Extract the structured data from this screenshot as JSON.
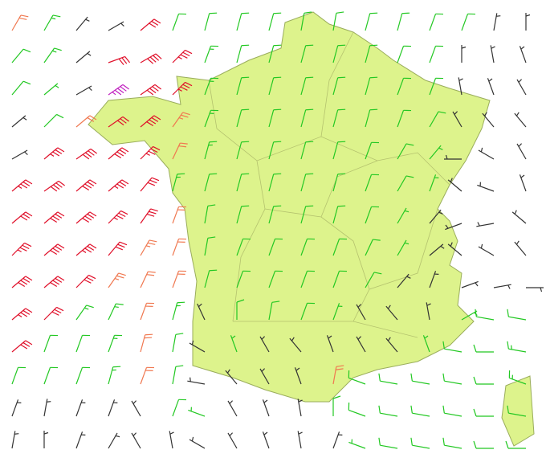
{
  "wind": {
    "speed_colors": [
      {
        "from": 0,
        "color": "#333333"
      },
      {
        "from": 8,
        "color": "#22c822"
      },
      {
        "from": 20,
        "color": "#f07850"
      },
      {
        "from": 30,
        "color": "#e0102a"
      },
      {
        "from": 45,
        "color": "#c020c0"
      }
    ],
    "rows": [
      [
        [
          210,
          20
        ],
        [
          210,
          15
        ],
        [
          220,
          5
        ],
        [
          240,
          5
        ],
        [
          230,
          30
        ],
        [
          200,
          12
        ],
        [
          195,
          12
        ],
        [
          195,
          12
        ],
        [
          195,
          12
        ],
        [
          190,
          12
        ],
        [
          190,
          12
        ],
        [
          195,
          12
        ],
        [
          195,
          12
        ],
        [
          200,
          12
        ],
        [
          200,
          12
        ],
        [
          190,
          5
        ],
        [
          180,
          5
        ]
      ],
      [
        [
          220,
          12
        ],
        [
          215,
          15
        ],
        [
          230,
          5
        ],
        [
          250,
          30
        ],
        [
          240,
          40
        ],
        [
          225,
          35
        ],
        [
          200,
          15
        ],
        [
          195,
          12
        ],
        [
          195,
          12
        ],
        [
          195,
          12
        ],
        [
          195,
          12
        ],
        [
          195,
          12
        ],
        [
          200,
          10
        ],
        [
          200,
          10
        ],
        [
          180,
          5
        ],
        [
          170,
          5
        ],
        [
          160,
          5
        ]
      ],
      [
        [
          220,
          12
        ],
        [
          230,
          8
        ],
        [
          240,
          5
        ],
        [
          235,
          45
        ],
        [
          235,
          40
        ],
        [
          225,
          35
        ],
        [
          200,
          15
        ],
        [
          195,
          12
        ],
        [
          195,
          12
        ],
        [
          195,
          12
        ],
        [
          195,
          12
        ],
        [
          195,
          12
        ],
        [
          200,
          10
        ],
        [
          200,
          10
        ],
        [
          170,
          5
        ],
        [
          160,
          5
        ],
        [
          150,
          5
        ]
      ],
      [
        [
          230,
          5
        ],
        [
          225,
          10
        ],
        [
          230,
          20
        ],
        [
          235,
          30
        ],
        [
          230,
          40
        ],
        [
          215,
          25
        ],
        [
          200,
          15
        ],
        [
          195,
          12
        ],
        [
          195,
          12
        ],
        [
          195,
          12
        ],
        [
          195,
          12
        ],
        [
          195,
          12
        ],
        [
          200,
          10
        ],
        [
          210,
          10
        ],
        [
          150,
          5
        ],
        [
          140,
          5
        ],
        [
          140,
          5
        ]
      ],
      [
        [
          240,
          5
        ],
        [
          230,
          35
        ],
        [
          235,
          40
        ],
        [
          230,
          40
        ],
        [
          225,
          35
        ],
        [
          205,
          20
        ],
        [
          195,
          15
        ],
        [
          195,
          12
        ],
        [
          195,
          12
        ],
        [
          195,
          12
        ],
        [
          195,
          12
        ],
        [
          200,
          10
        ],
        [
          210,
          10
        ],
        [
          220,
          8
        ],
        [
          90,
          5
        ],
        [
          120,
          5
        ],
        [
          150,
          5
        ]
      ],
      [
        [
          230,
          35
        ],
        [
          235,
          40
        ],
        [
          230,
          40
        ],
        [
          230,
          35
        ],
        [
          220,
          30
        ],
        [
          195,
          15
        ],
        [
          195,
          12
        ],
        [
          195,
          12
        ],
        [
          195,
          12
        ],
        [
          195,
          12
        ],
        [
          195,
          12
        ],
        [
          200,
          10
        ],
        [
          210,
          10
        ],
        [
          200,
          8
        ],
        [
          130,
          5
        ],
        [
          110,
          5
        ],
        [
          160,
          5
        ]
      ],
      [
        [
          230,
          30
        ],
        [
          230,
          40
        ],
        [
          230,
          40
        ],
        [
          225,
          35
        ],
        [
          215,
          30
        ],
        [
          200,
          20
        ],
        [
          190,
          12
        ],
        [
          195,
          12
        ],
        [
          195,
          12
        ],
        [
          195,
          12
        ],
        [
          195,
          12
        ],
        [
          200,
          10
        ],
        [
          210,
          8
        ],
        [
          220,
          5
        ],
        [
          70,
          5
        ],
        [
          80,
          5
        ],
        [
          130,
          5
        ]
      ],
      [
        [
          225,
          35
        ],
        [
          230,
          40
        ],
        [
          230,
          35
        ],
        [
          220,
          30
        ],
        [
          210,
          25
        ],
        [
          200,
          20
        ],
        [
          190,
          12
        ],
        [
          200,
          12
        ],
        [
          200,
          12
        ],
        [
          200,
          12
        ],
        [
          200,
          12
        ],
        [
          205,
          10
        ],
        [
          210,
          8
        ],
        [
          230,
          5
        ],
        [
          130,
          5
        ],
        [
          120,
          5
        ],
        [
          140,
          5
        ]
      ],
      [
        [
          230,
          40
        ],
        [
          230,
          40
        ],
        [
          225,
          30
        ],
        [
          215,
          25
        ],
        [
          205,
          20
        ],
        [
          200,
          20
        ],
        [
          195,
          12
        ],
        [
          200,
          12
        ],
        [
          200,
          12
        ],
        [
          200,
          12
        ],
        [
          200,
          12
        ],
        [
          210,
          10
        ],
        [
          220,
          5
        ],
        [
          200,
          5
        ],
        [
          250,
          5
        ],
        [
          260,
          5
        ],
        [
          270,
          5
        ]
      ],
      [
        [
          230,
          35
        ],
        [
          225,
          30
        ],
        [
          215,
          15
        ],
        [
          205,
          15
        ],
        [
          200,
          20
        ],
        [
          195,
          15
        ],
        [
          155,
          5
        ],
        [
          180,
          10
        ],
        [
          190,
          12
        ],
        [
          200,
          10
        ],
        [
          200,
          8
        ],
        [
          150,
          5
        ],
        [
          140,
          5
        ],
        [
          170,
          5
        ],
        [
          240,
          8
        ],
        [
          100,
          10
        ],
        [
          100,
          10
        ]
      ],
      [
        [
          230,
          30
        ],
        [
          200,
          12
        ],
        [
          200,
          12
        ],
        [
          200,
          15
        ],
        [
          195,
          20
        ],
        [
          190,
          12
        ],
        [
          120,
          5
        ],
        [
          160,
          8
        ],
        [
          150,
          5
        ],
        [
          140,
          5
        ],
        [
          160,
          5
        ],
        [
          150,
          5
        ],
        [
          140,
          5
        ],
        [
          160,
          8
        ],
        [
          100,
          12
        ],
        [
          90,
          12
        ],
        [
          100,
          15
        ]
      ],
      [
        [
          200,
          12
        ],
        [
          200,
          12
        ],
        [
          200,
          12
        ],
        [
          195,
          15
        ],
        [
          200,
          20
        ],
        [
          190,
          10
        ],
        [
          100,
          5
        ],
        [
          140,
          5
        ],
        [
          150,
          5
        ],
        [
          160,
          5
        ],
        [
          190,
          22
        ],
        [
          110,
          10
        ],
        [
          100,
          12
        ],
        [
          100,
          12
        ],
        [
          100,
          12
        ],
        [
          90,
          12
        ],
        [
          110,
          15
        ]
      ],
      [
        [
          200,
          5
        ],
        [
          190,
          5
        ],
        [
          200,
          5
        ],
        [
          200,
          5
        ],
        [
          150,
          5
        ],
        [
          200,
          12
        ],
        [
          110,
          8
        ],
        [
          150,
          5
        ],
        [
          160,
          5
        ],
        [
          170,
          5
        ],
        [
          180,
          10
        ],
        [
          110,
          10
        ],
        [
          100,
          10
        ],
        [
          100,
          10
        ],
        [
          100,
          10
        ],
        [
          90,
          10
        ],
        [
          100,
          12
        ]
      ],
      [
        [
          190,
          5
        ],
        [
          180,
          5
        ],
        [
          200,
          5
        ],
        [
          210,
          5
        ],
        [
          150,
          5
        ],
        [
          170,
          5
        ],
        [
          120,
          5
        ],
        [
          150,
          5
        ],
        [
          160,
          5
        ],
        [
          170,
          5
        ],
        [
          200,
          5
        ],
        [
          110,
          8
        ],
        [
          100,
          10
        ],
        [
          100,
          10
        ],
        [
          100,
          10
        ],
        [
          90,
          10
        ],
        [
          90,
          12
        ]
      ]
    ]
  }
}
